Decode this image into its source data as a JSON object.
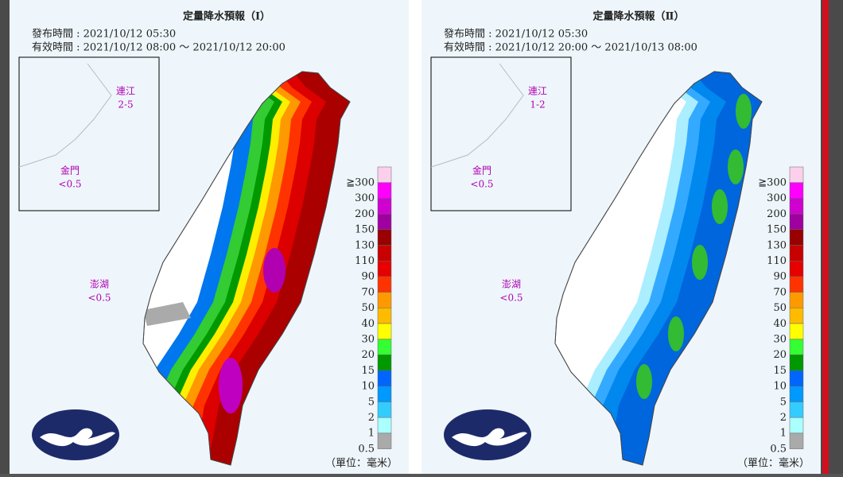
{
  "panels": [
    {
      "title": "定量降水預報（Ⅰ）",
      "issued": "發布時間 : 2021/10/12 05:30",
      "valid": "有效時間 : 2021/10/12 08:00 ～ 2021/10/12 20:00",
      "regions": [
        {
          "name": "連江",
          "value": "2-5"
        },
        {
          "name": "金門",
          "value": "<0.5"
        },
        {
          "name": "澎湖",
          "value": "<0.5"
        }
      ],
      "unit": "（單位：毫米）"
    },
    {
      "title": "定量降水預報（Ⅱ）",
      "issued": "發布時間 : 2021/10/12 05:30",
      "valid": "有效時間 : 2021/10/12 20:00 ～ 2021/10/13 08:00",
      "regions": [
        {
          "name": "連江",
          "value": "1-2"
        },
        {
          "name": "金門",
          "value": "<0.5"
        },
        {
          "name": "澎湖",
          "value": "<0.5"
        }
      ],
      "unit": "（單位：毫米）"
    }
  ],
  "legend": {
    "labels": [
      "≧300",
      "300",
      "200",
      "150",
      "130",
      "110",
      "90",
      "70",
      "50",
      "40",
      "30",
      "20",
      "15",
      "10",
      "5",
      "2",
      "1",
      "0.5"
    ],
    "colors": [
      "#fcd0ec",
      "#ff00ff",
      "#d000d0",
      "#a000a0",
      "#990000",
      "#c80000",
      "#e60000",
      "#ff3300",
      "#ff9900",
      "#ffbb00",
      "#ffff00",
      "#33ff33",
      "#009900",
      "#0066ff",
      "#0099ff",
      "#33ccff",
      "#aaffff",
      "#aaaaaa"
    ]
  }
}
